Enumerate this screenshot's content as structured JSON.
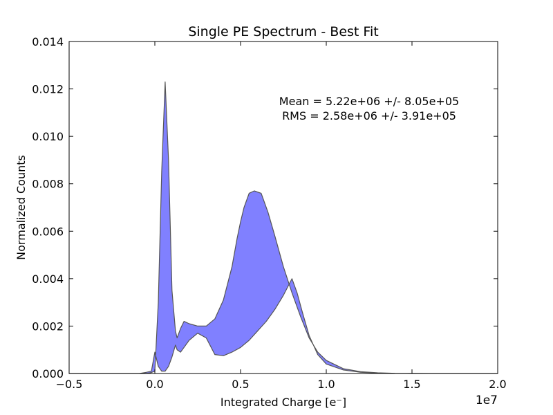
{
  "chart_data": {
    "type": "area",
    "title": "Single PE Spectrum - Best Fit",
    "xlabel": "Integrated Charge [e⁻]",
    "ylabel": "Normalized Counts",
    "x_multiplier_label": "1e7",
    "x_scale": 10000000,
    "xlim": [
      -0.5,
      2.0
    ],
    "ylim": [
      0.0,
      0.014
    ],
    "x_ticks": [
      -0.5,
      0.0,
      0.5,
      1.0,
      1.5,
      2.0
    ],
    "x_tick_labels": [
      "−0.5",
      "0.0",
      "0.5",
      "1.0",
      "1.5",
      "2.0"
    ],
    "y_ticks": [
      0.0,
      0.002,
      0.004,
      0.006,
      0.008,
      0.01,
      0.012,
      0.014
    ],
    "y_tick_labels": [
      "0.000",
      "0.002",
      "0.004",
      "0.006",
      "0.008",
      "0.010",
      "0.012",
      "0.014"
    ],
    "annotations": [
      "Mean = 5.22e+06 +/- 8.05e+05",
      "RMS = 2.58e+06 +/- 3.91e+05"
    ],
    "fill_color": "#8080ff",
    "edge_color": "#555555",
    "grid": false,
    "upper": {
      "x": [
        -0.5,
        -0.09,
        -0.05,
        -0.02,
        0.0,
        0.02,
        0.04,
        0.06,
        0.08,
        0.1,
        0.12,
        0.13,
        0.15,
        0.17,
        0.2,
        0.25,
        0.3,
        0.35,
        0.4,
        0.45,
        0.48,
        0.5,
        0.52,
        0.55,
        0.58,
        0.62,
        0.66,
        0.7,
        0.75,
        0.8,
        0.85,
        0.9,
        0.95,
        1.0,
        1.1,
        1.2,
        1.3,
        1.4,
        1.5,
        1.6,
        1.7,
        1.8,
        2.0
      ],
      "y": [
        0.0,
        0.0,
        0.0,
        4e-05,
        0.0001,
        0.003,
        0.0085,
        0.0123,
        0.009,
        0.0035,
        0.0018,
        0.0015,
        0.0019,
        0.0022,
        0.0021,
        0.002,
        0.002,
        0.0023,
        0.0031,
        0.0045,
        0.0057,
        0.0064,
        0.007,
        0.0076,
        0.0077,
        0.0076,
        0.0068,
        0.0058,
        0.0045,
        0.0034,
        0.0024,
        0.0015,
        0.0009,
        0.00055,
        0.0002,
        8e-05,
        3e-05,
        1e-05,
        5e-06,
        0.0,
        0.0,
        0.0,
        0.0
      ]
    },
    "lower": {
      "x": [
        -0.5,
        -0.09,
        -0.05,
        -0.02,
        0.0,
        0.02,
        0.04,
        0.06,
        0.08,
        0.1,
        0.12,
        0.13,
        0.15,
        0.17,
        0.2,
        0.25,
        0.3,
        0.35,
        0.4,
        0.45,
        0.5,
        0.55,
        0.6,
        0.65,
        0.7,
        0.75,
        0.8,
        0.83,
        0.86,
        0.9,
        0.95,
        1.0,
        1.1,
        1.2,
        1.3,
        1.4,
        1.5,
        1.6,
        1.7,
        1.8,
        2.0
      ],
      "y": [
        0.0,
        0.0,
        5e-05,
        0.0001,
        0.0009,
        0.0003,
        0.0001,
        0.0001,
        0.0003,
        0.0007,
        0.0012,
        0.001,
        0.0009,
        0.0011,
        0.0014,
        0.0017,
        0.0015,
        0.0008,
        0.00075,
        0.0009,
        0.0011,
        0.0014,
        0.0018,
        0.0022,
        0.0027,
        0.0033,
        0.004,
        0.0034,
        0.0026,
        0.0016,
        0.0008,
        0.0004,
        0.00015,
        5e-05,
        2e-05,
        1e-05,
        0.0,
        0.0,
        0.0,
        0.0,
        0.0
      ]
    }
  }
}
